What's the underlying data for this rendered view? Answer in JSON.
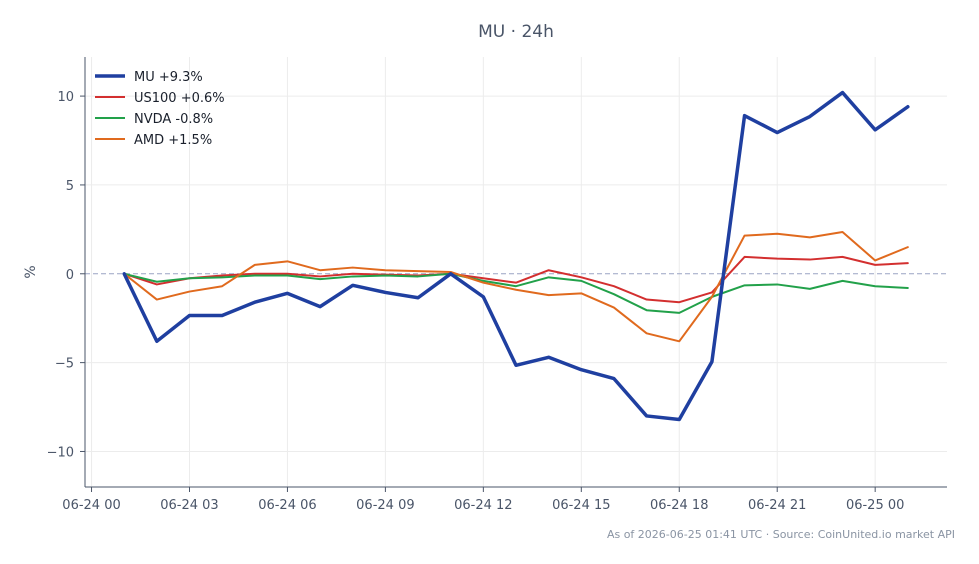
{
  "chart_data": {
    "type": "line",
    "title": "MU · 24h",
    "ylabel": "%",
    "xlabel": "",
    "ylim": [
      -12,
      12.2
    ],
    "xlim_hours": [
      -0.2,
      26.2
    ],
    "x_tick_labels": [
      "06-24 00",
      "06-24 03",
      "06-24 06",
      "06-24 09",
      "06-24 12",
      "06-24 15",
      "06-24 18",
      "06-24 21",
      "06-25 00"
    ],
    "y_ticks": [
      -10,
      -5,
      0,
      5,
      10
    ],
    "y_tick_labels": [
      "−10",
      "−5",
      "0",
      "5",
      "10"
    ],
    "baseline": 0,
    "grid": true,
    "legend_position": "top-left",
    "x": [
      "06-24 01:00",
      "06-24 02:00",
      "06-24 03:00",
      "06-24 04:00",
      "06-24 05:00",
      "06-24 06:00",
      "06-24 07:00",
      "06-24 08:00",
      "06-24 09:00",
      "06-24 10:00",
      "06-24 11:00",
      "06-24 12:00",
      "06-24 13:00",
      "06-24 14:00",
      "06-24 15:00",
      "06-24 16:00",
      "06-24 17:00",
      "06-24 18:00",
      "06-24 19:00",
      "06-24 20:00",
      "06-24 21:00",
      "06-24 22:00",
      "06-24 23:00",
      "06-25 00:00",
      "06-25 01:00"
    ],
    "series": [
      {
        "name": "MU +9.3%",
        "color": "#1f3fa0",
        "width": 3.5,
        "values": [
          0,
          -3.8,
          -2.35,
          -2.35,
          -1.6,
          -1.1,
          -1.85,
          -0.65,
          -1.05,
          -1.35,
          0,
          -1.3,
          -5.15,
          -4.7,
          -5.4,
          -5.9,
          -8,
          -8.2,
          -4.95,
          8.9,
          7.95,
          8.85,
          10.2,
          8.1,
          9.4
        ]
      },
      {
        "name": "US100 +0.6%",
        "color": "#d32f2f",
        "width": 2,
        "values": [
          0,
          -0.6,
          -0.25,
          -0.1,
          0,
          0,
          -0.15,
          0,
          -0.05,
          -0.1,
          0,
          -0.25,
          -0.5,
          0.2,
          -0.2,
          -0.7,
          -1.45,
          -1.6,
          -1.05,
          0.95,
          0.85,
          0.8,
          0.95,
          0.5,
          0.6
        ]
      },
      {
        "name": "NVDA -0.8%",
        "color": "#22a14a",
        "width": 2,
        "values": [
          0,
          -0.45,
          -0.25,
          -0.2,
          -0.1,
          -0.1,
          -0.3,
          -0.15,
          -0.1,
          -0.15,
          0,
          -0.4,
          -0.7,
          -0.2,
          -0.4,
          -1.15,
          -2.05,
          -2.2,
          -1.3,
          -0.65,
          -0.6,
          -0.85,
          -0.4,
          -0.7,
          -0.8
        ]
      },
      {
        "name": "AMD +1.5%",
        "color": "#e06a1e",
        "width": 2,
        "values": [
          0,
          -1.45,
          -1,
          -0.7,
          0.5,
          0.7,
          0.2,
          0.35,
          0.2,
          0.15,
          0.1,
          -0.5,
          -0.9,
          -1.2,
          -1.1,
          -1.9,
          -3.35,
          -3.8,
          -1.3,
          2.15,
          2.25,
          2.05,
          2.35,
          0.75,
          1.5
        ]
      }
    ]
  },
  "footer": {
    "text": "As of 2026-06-25 01:41 UTC · Source: CoinUnited.io market API"
  },
  "colors": {
    "axis": "#4a5568",
    "grid": "#ececec",
    "baseline": "#9aa4c4",
    "background": "#ffffff"
  }
}
